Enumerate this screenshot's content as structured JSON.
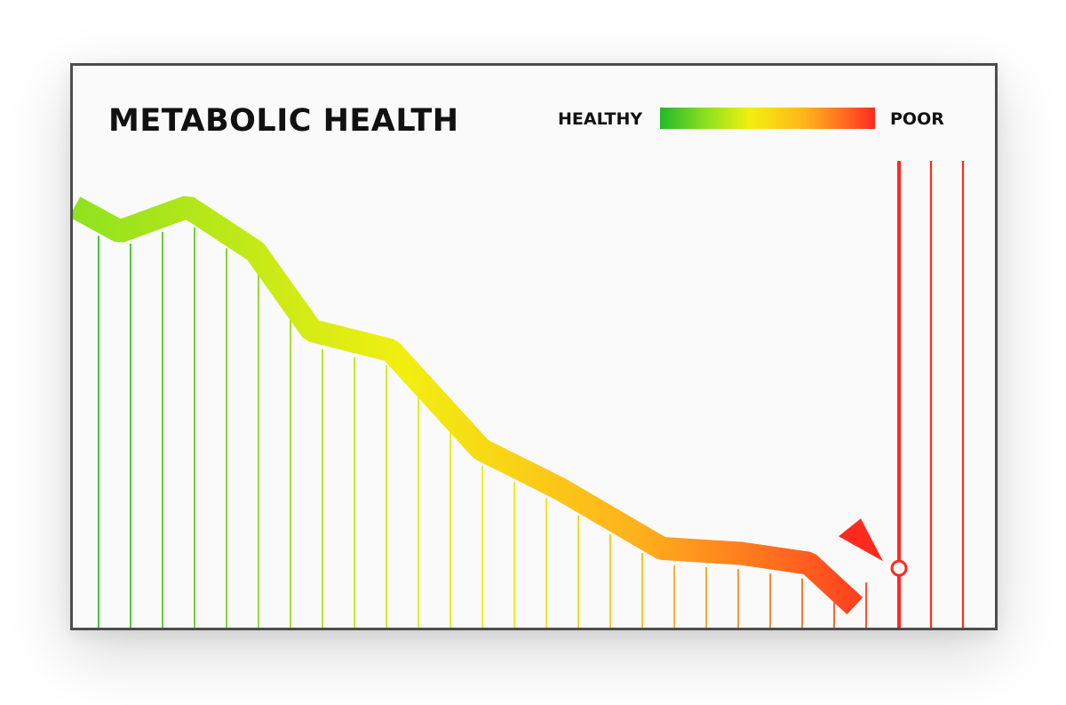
{
  "chart_data": {
    "type": "line",
    "title": "METABOLIC HEALTH",
    "xlabel": "",
    "ylabel": "",
    "x": [
      0,
      2,
      5,
      8,
      10.5,
      14,
      18,
      21.5,
      26,
      29.5,
      32.5,
      36.5
    ],
    "values": [
      85,
      80,
      85,
      76,
      60,
      56,
      36,
      28,
      16,
      15,
      13,
      12
    ],
    "ylim": [
      0,
      100
    ],
    "legend": {
      "scale_left_label": "HEALTHY",
      "scale_right_label": "POOR",
      "placement": "top-right"
    },
    "marker": {
      "x": 36.5,
      "y": 12
    },
    "grid": true,
    "colors": {
      "healthy": "#22b82a",
      "mid": "#f2ef10",
      "poor": "#ff2a1f",
      "frame": "#4d4d4d"
    }
  }
}
